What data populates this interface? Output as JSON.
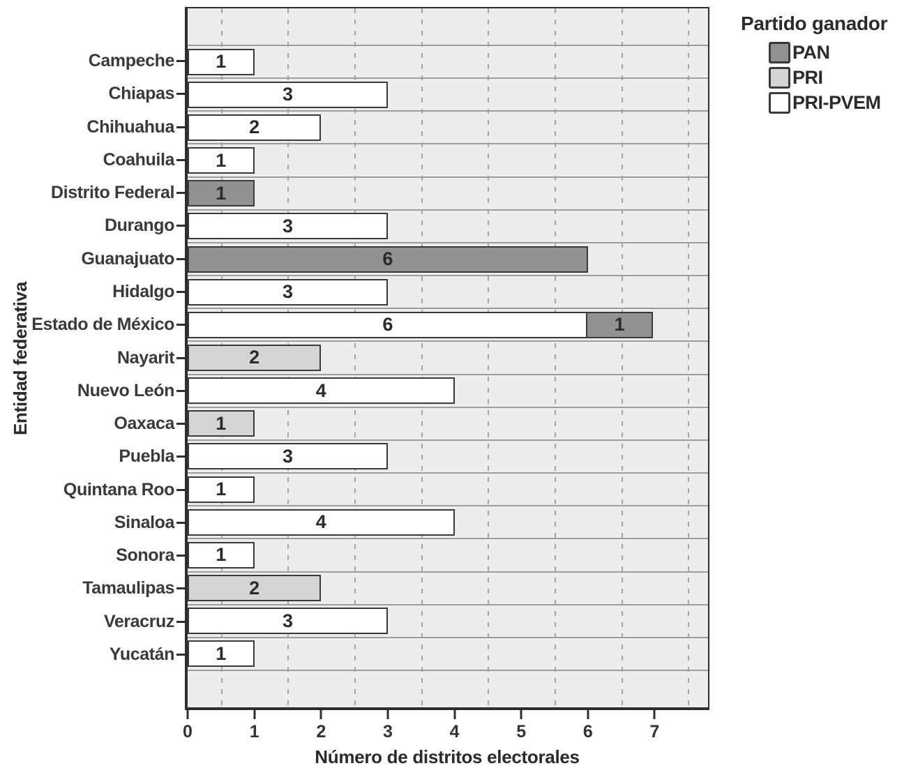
{
  "chart_data": {
    "type": "bar",
    "orientation": "horizontal",
    "xlabel": "Número de distritos electorales",
    "ylabel": "Entidad federativa",
    "xlim": [
      0,
      7.8
    ],
    "xticks": [
      0,
      1,
      2,
      3,
      4,
      5,
      6,
      7
    ],
    "grid": {
      "horizontal_lines": true,
      "vertical_dashed_at_half_units": true
    },
    "legend": {
      "title": "Partido ganador",
      "position": "top-right",
      "entries": [
        "PAN",
        "PRI",
        "PRI-PVEM"
      ]
    },
    "party_colors": {
      "PAN": "#929292",
      "PRI": "#d4d4d4",
      "PRI-PVEM": "#ffffff"
    },
    "rows": [
      {
        "category": "Campeche",
        "segments": [
          {
            "party": "PRI-PVEM",
            "value": 1
          }
        ]
      },
      {
        "category": "Chiapas",
        "segments": [
          {
            "party": "PRI-PVEM",
            "value": 3
          }
        ]
      },
      {
        "category": "Chihuahua",
        "segments": [
          {
            "party": "PRI-PVEM",
            "value": 2
          }
        ]
      },
      {
        "category": "Coahuila",
        "segments": [
          {
            "party": "PRI-PVEM",
            "value": 1
          }
        ]
      },
      {
        "category": "Distrito Federal",
        "segments": [
          {
            "party": "PAN",
            "value": 1
          }
        ]
      },
      {
        "category": "Durango",
        "segments": [
          {
            "party": "PRI-PVEM",
            "value": 3
          }
        ]
      },
      {
        "category": "Guanajuato",
        "segments": [
          {
            "party": "PAN",
            "value": 6
          }
        ]
      },
      {
        "category": "Hidalgo",
        "segments": [
          {
            "party": "PRI-PVEM",
            "value": 3
          }
        ]
      },
      {
        "category": "Estado de México",
        "segments": [
          {
            "party": "PRI-PVEM",
            "value": 6
          },
          {
            "party": "PAN",
            "value": 1
          }
        ]
      },
      {
        "category": "Nayarit",
        "segments": [
          {
            "party": "PRI",
            "value": 2
          }
        ]
      },
      {
        "category": "Nuevo León",
        "segments": [
          {
            "party": "PRI-PVEM",
            "value": 4
          }
        ]
      },
      {
        "category": "Oaxaca",
        "segments": [
          {
            "party": "PRI",
            "value": 1
          }
        ]
      },
      {
        "category": "Puebla",
        "segments": [
          {
            "party": "PRI-PVEM",
            "value": 3
          }
        ]
      },
      {
        "category": "Quintana Roo",
        "segments": [
          {
            "party": "PRI-PVEM",
            "value": 1
          }
        ]
      },
      {
        "category": "Sinaloa",
        "segments": [
          {
            "party": "PRI-PVEM",
            "value": 4
          }
        ]
      },
      {
        "category": "Sonora",
        "segments": [
          {
            "party": "PRI-PVEM",
            "value": 1
          }
        ]
      },
      {
        "category": "Tamaulipas",
        "segments": [
          {
            "party": "PRI",
            "value": 2
          }
        ]
      },
      {
        "category": "Veracruz",
        "segments": [
          {
            "party": "PRI-PVEM",
            "value": 3
          }
        ]
      },
      {
        "category": "Yucatán",
        "segments": [
          {
            "party": "PRI-PVEM",
            "value": 1
          }
        ]
      }
    ]
  }
}
